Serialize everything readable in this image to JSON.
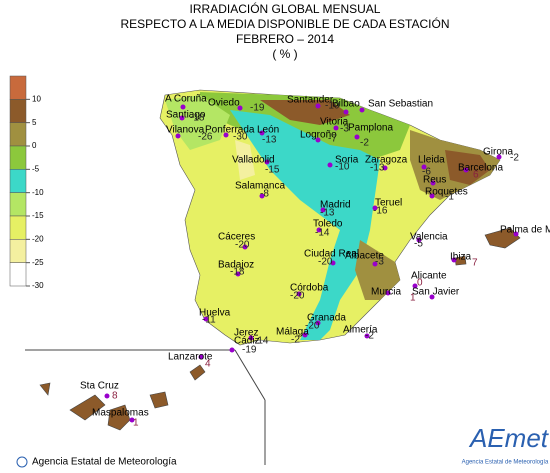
{
  "header": {
    "lines": [
      "IRRADIACIÓN GLOBAL MENSUAL",
      "RESPECTO A LA MEDIA DISPONIBLE DE CADA ESTACIÓN",
      "FEBRERO – 2014",
      "( % )"
    ]
  },
  "legend": {
    "ticks": [
      10,
      5,
      0,
      -5,
      -10,
      -15,
      -20,
      -25,
      -30
    ],
    "colors": [
      "#c86a3c",
      "#8c5a2a",
      "#a09040",
      "#8cc83c",
      "#3cd8c8",
      "#b4e664",
      "#e6f064",
      "#f4f0a0",
      "#ffffff"
    ]
  },
  "stations": [
    {
      "name": "A Coruña"
    },
    {
      "name": "Oviedo",
      "value": -19
    },
    {
      "name": "Santander",
      "value": -10
    },
    {
      "name": "Bilbao"
    },
    {
      "name": "San Sebastian"
    },
    {
      "name": "Santiago",
      "value": -18
    },
    {
      "name": "Vilanova",
      "value": -26
    },
    {
      "name": "Ponferrada",
      "value": -30
    },
    {
      "name": "León",
      "value": -13
    },
    {
      "name": "Vitoria",
      "value": -3
    },
    {
      "name": "Logroño",
      "value": -7
    },
    {
      "name": "Pamplona",
      "value": -2
    },
    {
      "name": "Valladolid",
      "value": -15
    },
    {
      "name": "Soria",
      "value": -10
    },
    {
      "name": "Zaragoza",
      "value": -13
    },
    {
      "name": "Lleida",
      "value": -6
    },
    {
      "name": "Girona",
      "value": -2
    },
    {
      "name": "Barcelona",
      "value": 6
    },
    {
      "name": "Reus"
    },
    {
      "name": "Roquetes",
      "value": -1
    },
    {
      "name": "Salamanca",
      "value": -8
    },
    {
      "name": "Madrid",
      "value": -13
    },
    {
      "name": "Teruel",
      "value": -16
    },
    {
      "name": "Toledo",
      "value": -14
    },
    {
      "name": "Valencia",
      "value": -5
    },
    {
      "name": "Palma de M."
    },
    {
      "name": "Ibiza",
      "value": 7
    },
    {
      "name": "Cáceres",
      "value": -20
    },
    {
      "name": "Badajoz",
      "value": -18
    },
    {
      "name": "Ciudad Real",
      "value": -20
    },
    {
      "name": "Albacete",
      "value": -3
    },
    {
      "name": "Alicante",
      "value": 0
    },
    {
      "name": "Murcia"
    },
    {
      "name": "San Javier",
      "value": 1
    },
    {
      "name": "Córdoba",
      "value": -20
    },
    {
      "name": "Huelva",
      "value": -11
    },
    {
      "name": "Granada",
      "value": -20
    },
    {
      "name": "Almería",
      "value": -2
    },
    {
      "name": "Jerez",
      "value": -14
    },
    {
      "name": "Cádiz",
      "value": -19
    },
    {
      "name": "Málaga",
      "value": -2
    },
    {
      "name": "Lanzarote",
      "value": 4
    },
    {
      "name": "Sta Cruz",
      "value": 8
    },
    {
      "name": "Maspalomas",
      "value": 1
    }
  ],
  "footer": {
    "agency": "Agencia Estatal de Meteorología",
    "logo": "AEmet",
    "logo_caption": "Agencia Estatal de Meteorología"
  }
}
